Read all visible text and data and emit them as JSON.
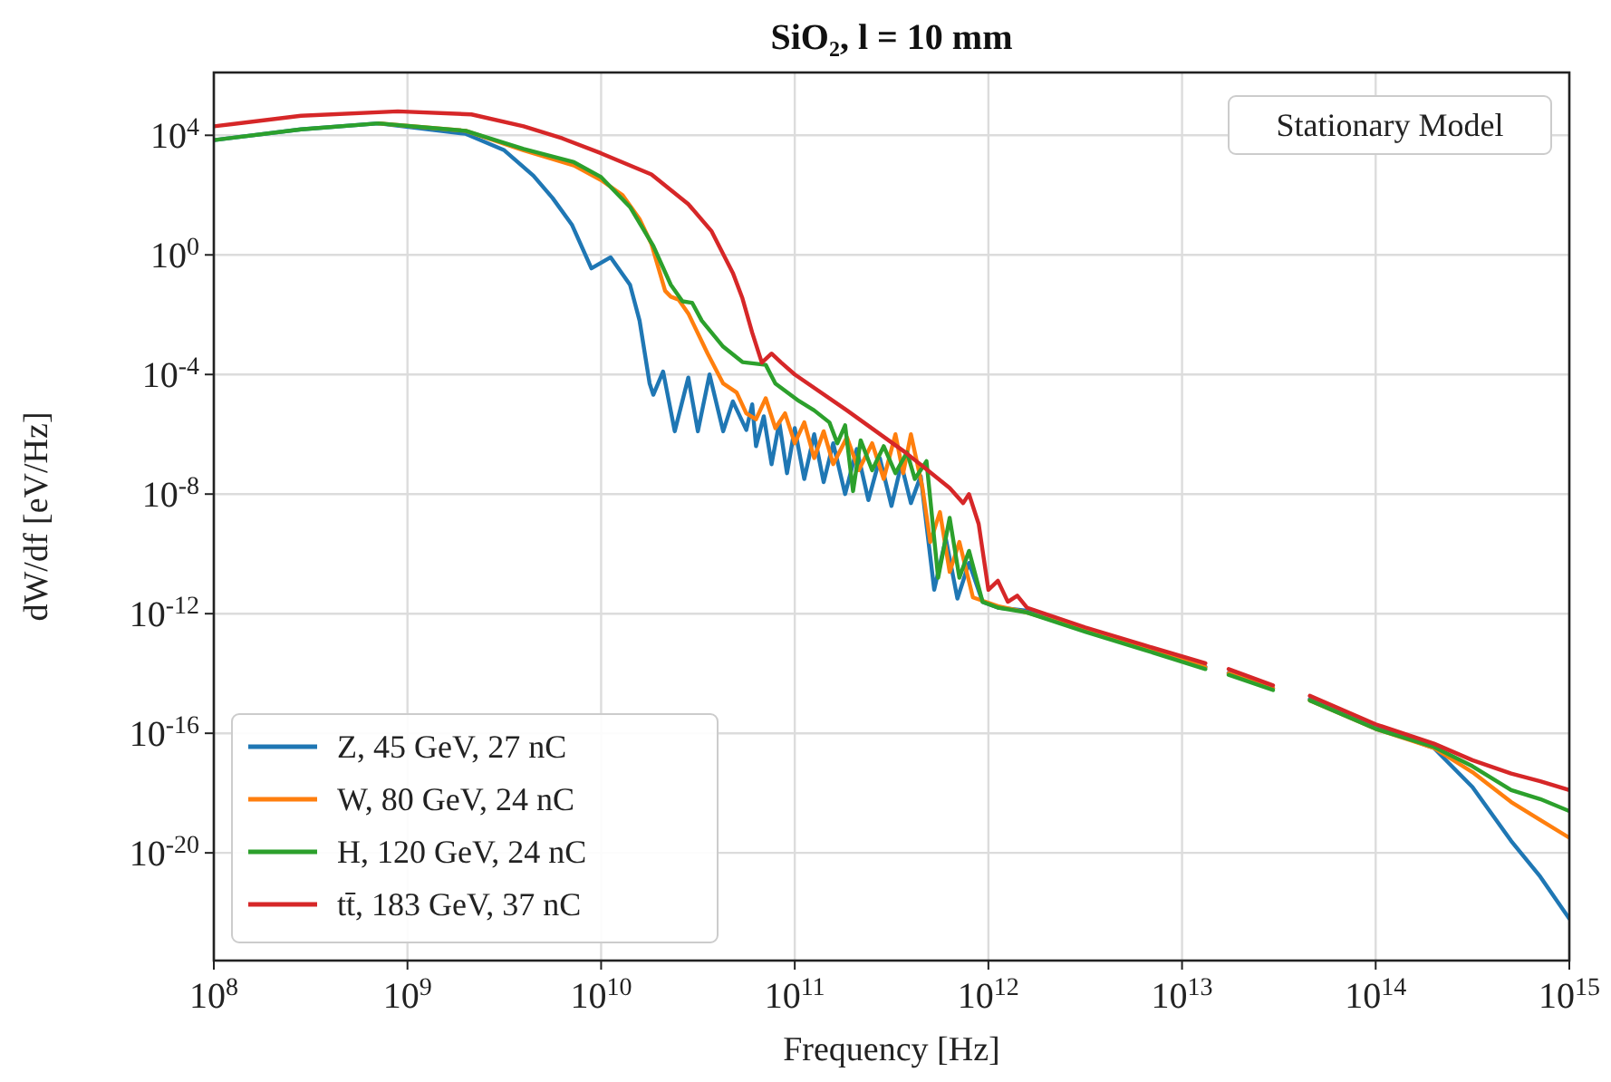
{
  "chart_data": {
    "type": "line",
    "title": "SiO₂, l = 10 mm",
    "xlabel": "Frequency [Hz]",
    "ylabel": "dW/df [eV/Hz]",
    "log": "xy",
    "grid": true,
    "legend": "bottom left",
    "annotations": [
      "Stationary Model"
    ],
    "xlim": [
      100000000.0,
      1000000000000000.0
    ],
    "ylim": [
      2.5e-24,
      1260000.0
    ],
    "xticks": [
      {
        "value": 100000000.0,
        "label": "10$^{8}$"
      },
      {
        "value": 1000000000.0,
        "label": "10$^{9}$"
      },
      {
        "value": 10000000000.0,
        "label": "10$^{10}$"
      },
      {
        "value": 100000000000.0,
        "label": "10$^{11}$"
      },
      {
        "value": 1000000000000.0,
        "label": "10$^{12}$"
      },
      {
        "value": 10000000000000.0,
        "label": "10$^{13}$"
      },
      {
        "value": 100000000000000.0,
        "label": "10$^{14}$"
      },
      {
        "value": 1000000000000000.0,
        "label": "10$^{15}$"
      }
    ],
    "yticks": [
      {
        "value": 10000.0,
        "label": "10$^{4}$"
      },
      {
        "value": 1,
        "label": "10$^{0}$"
      },
      {
        "value": 0.0001,
        "label": "10$^{-4}$"
      },
      {
        "value": 1e-08,
        "label": "10$^{-8}$"
      },
      {
        "value": 1e-12,
        "label": "10$^{-12}$"
      },
      {
        "value": 1e-16,
        "label": "10$^{-16}$"
      },
      {
        "value": 1e-20,
        "label": "10$^{-20}$"
      }
    ],
    "series": [
      {
        "name": "Z, 45 GeV, 27 nC",
        "color": "#1f77b4",
        "x": [
          100000000.0,
          282000000.0,
          708000000.0,
          2000000000.0,
          3160000000.0,
          4470000000.0,
          5620000000.0,
          7080000000.0,
          8910000000.0,
          11200000000.0,
          14100000000.0,
          15800000000.0,
          17800000000.0,
          18600000000.0,
          20900000000.0,
          24000000000.0,
          28200000000.0,
          31600000000.0,
          36300000000.0,
          42700000000.0,
          47900000000.0,
          56200000000.0,
          60300000000.0,
          63100000000.0,
          69200000000.0,
          75900000000.0,
          83200000000.0,
          91200000000.0,
          100000000000.0,
          112000000000.0,
          126000000000.0,
          141000000000.0,
          158000000000.0,
          182000000000.0,
          209000000000.0,
          240000000000.0,
          275000000000.0,
          316000000000.0,
          355000000000.0,
          398000000000.0,
          447000000000.0,
          525000000000.0,
          603000000000.0,
          692000000000.0,
          794000000000.0,
          933000000000.0,
          1120000000000.0,
          1580000000000.0,
          3160000000000.0,
          6310000000000.0,
          13200000000000.0,
          15000000000000.0,
          17400000000000.0,
          29500000000000.0,
          36000000000000.0,
          45700000000000.0,
          100000000000000.0,
          200000000000000.0,
          316000000000000.0,
          501000000000000.0,
          708000000000000.0,
          1000000000000000.0
        ],
        "values": [
          6900.0,
          15800.0,
          25100.0,
          11200.0,
          3160.0,
          447,
          79.4,
          10,
          0.355,
          0.83,
          0.1,
          0.0063,
          5e-05,
          2.1e-05,
          0.000126,
          1.26e-06,
          7.9e-05,
          1.26e-06,
          0.0001,
          1.26e-06,
          1.26e-05,
          1.4e-06,
          1e-05,
          4e-07,
          4e-06,
          1e-07,
          2.5e-06,
          5e-08,
          1.6e-06,
          3.2e-08,
          1e-06,
          2.5e-08,
          5e-07,
          1e-08,
          3.2e-07,
          6.3e-09,
          1.6e-07,
          4e-09,
          1e-07,
          5e-09,
          4e-08,
          6.3e-12,
          3.2e-10,
          3.2e-12,
          5e-11,
          2.5e-12,
          1.6e-12,
          1.26e-12,
          2.8e-13,
          8e-14,
          1.66e-14,
          null,
          1.05e-14,
          3.2e-15,
          null,
          1.4e-15,
          1.6e-16,
          3.2e-17,
          1.6e-18,
          2.5e-20,
          1.6e-21,
          6.3e-23
        ]
      },
      {
        "name": "W, 80 GeV, 24 nC",
        "color": "#ff7f0e",
        "x": [
          708000000.0,
          2000000000.0,
          3980000000.0,
          7240000000.0,
          10000000000.0,
          12900000000.0,
          15800000000.0,
          18200000000.0,
          21400000000.0,
          22900000000.0,
          25100000000.0,
          28200000000.0,
          35500000000.0,
          42700000000.0,
          50100000000.0,
          56200000000.0,
          63100000000.0,
          70800000000.0,
          79400000000.0,
          89100000000.0,
          100000000000.0,
          112000000000.0,
          126000000000.0,
          141000000000.0,
          158000000000.0,
          186000000000.0,
          214000000000.0,
          251000000000.0,
          288000000000.0,
          331000000000.0,
          363000000000.0,
          398000000000.0,
          457000000000.0,
          501000000000.0,
          562000000000.0,
          631000000000.0,
          708000000000.0,
          832000000000.0,
          1120000000000.0,
          1580000000000.0,
          3160000000000.0,
          6310000000000.0,
          13200000000000.0,
          15000000000000.0,
          17400000000000.0,
          29500000000000.0,
          36000000000000.0,
          45700000000000.0,
          100000000000000.0,
          200000000000000.0,
          316000000000000.0,
          501000000000000.0,
          708000000000000.0,
          1000000000000000.0
        ],
        "values": [
          25100.0,
          14100.0,
          3160.0,
          980,
          316,
          100,
          15.8,
          2.3,
          0.063,
          0.04,
          0.032,
          0.011,
          0.0005,
          5e-05,
          2.5e-05,
          5e-06,
          3.2e-06,
          1.6e-05,
          1.6e-06,
          5e-06,
          5e-07,
          2.5e-06,
          1.6e-07,
          1.26e-06,
          1e-07,
          7.9e-07,
          6.3e-08,
          5e-07,
          3.2e-08,
          1e-06,
          5e-08,
          1e-06,
          1.6e-08,
          2.5e-10,
          2.5e-09,
          2.5e-11,
          2.5e-10,
          3.5e-12,
          1.8e-12,
          1.1e-12,
          2.8e-13,
          7e-14,
          1.6e-14,
          null,
          1e-14,
          3.2e-15,
          null,
          1.26e-15,
          1.4e-16,
          3.2e-17,
          5e-18,
          5e-19,
          1.26e-19,
          3.2e-20
        ]
      },
      {
        "name": "H, 120 GeV, 24 nC",
        "color": "#2ca02c",
        "x": [
          100000000.0,
          282000000.0,
          708000000.0,
          2000000000.0,
          3980000000.0,
          7240000000.0,
          10000000000.0,
          14100000000.0,
          18600000000.0,
          22900000000.0,
          26300000000.0,
          29500000000.0,
          33100000000.0,
          42700000000.0,
          53700000000.0,
          70800000000.0,
          79400000000.0,
          105000000000.0,
          126000000000.0,
          151000000000.0,
          166000000000.0,
          182000000000.0,
          200000000000.0,
          219000000000.0,
          251000000000.0,
          288000000000.0,
          331000000000.0,
          380000000000.0,
          417000000000.0,
          479000000000.0,
          550000000000.0,
          631000000000.0,
          708000000000.0,
          794000000000.0,
          933000000000.0,
          1120000000000.0,
          1580000000000.0,
          3160000000000.0,
          6310000000000.0,
          13200000000000.0,
          15000000000000.0,
          17400000000000.0,
          29500000000000.0,
          36000000000000.0,
          45700000000000.0,
          100000000000000.0,
          200000000000000.0,
          316000000000000.0,
          501000000000000.0,
          708000000000000.0,
          1000000000000000.0
        ],
        "values": [
          6900.0,
          15800.0,
          25100.0,
          14100.0,
          3500.0,
          1260.0,
          400,
          40,
          2,
          0.1,
          0.028,
          0.025,
          0.0063,
          0.00085,
          0.00026,
          0.00021,
          5e-05,
          1.3e-05,
          6.3e-06,
          2.5e-06,
          5e-07,
          2e-06,
          1.26e-08,
          6.3e-07,
          6.3e-08,
          4e-07,
          5e-08,
          2.5e-07,
          3.2e-08,
          1.26e-07,
          1.6e-11,
          1.6e-09,
          1.6e-11,
          1.26e-10,
          2.5e-12,
          1.6e-12,
          1.1e-12,
          2.5e-13,
          6.3e-14,
          1.4e-14,
          null,
          9e-15,
          2.8e-15,
          null,
          1.26e-15,
          1.4e-16,
          3.5e-17,
          7.9e-18,
          1.26e-18,
          6.3e-19,
          2.5e-19
        ]
      },
      {
        "name": "tt̄, 183 GeV, 37 nC",
        "color": "#d62728",
        "x": [
          100000000.0,
          282000000.0,
          891000000.0,
          2140000000.0,
          3980000000.0,
          6310000000.0,
          10000000000.0,
          18200000000.0,
          28200000000.0,
          37200000000.0,
          47900000000.0,
          53700000000.0,
          60300000000.0,
          67600000000.0,
          75900000000.0,
          85100000000.0,
          100000000000.0,
          186000000000.0,
          372000000000.0,
          631000000000.0,
          741000000000.0,
          794000000000.0,
          891000000000.0,
          1000000000000.0,
          1120000000000.0,
          1260000000000.0,
          1410000000000.0,
          1580000000000.0,
          3160000000000.0,
          6310000000000.0,
          13200000000000.0,
          15000000000000.0,
          17400000000000.0,
          29500000000000.0,
          36000000000000.0,
          45700000000000.0,
          100000000000000.0,
          200000000000000.0,
          316000000000000.0,
          501000000000000.0,
          708000000000000.0,
          1000000000000000.0
        ],
        "values": [
          20000.0,
          45000.0,
          63000.0,
          50000.0,
          20000.0,
          7900.0,
          2500.0,
          490,
          50,
          6.2,
          0.25,
          0.035,
          0.0025,
          0.00025,
          0.0005,
          0.00025,
          0.0001,
          6.3e-06,
          2.5e-07,
          1.6e-08,
          5e-09,
          1e-08,
          1e-09,
          6.3e-12,
          1.26e-11,
          2.5e-12,
          4e-12,
          1.6e-12,
          3.5e-13,
          9e-14,
          2.2e-14,
          null,
          1.4e-14,
          4e-15,
          null,
          1.8e-15,
          2e-16,
          4.5e-17,
          1.26e-17,
          4.5e-18,
          2.5e-18,
          1.26e-18
        ]
      }
    ]
  }
}
